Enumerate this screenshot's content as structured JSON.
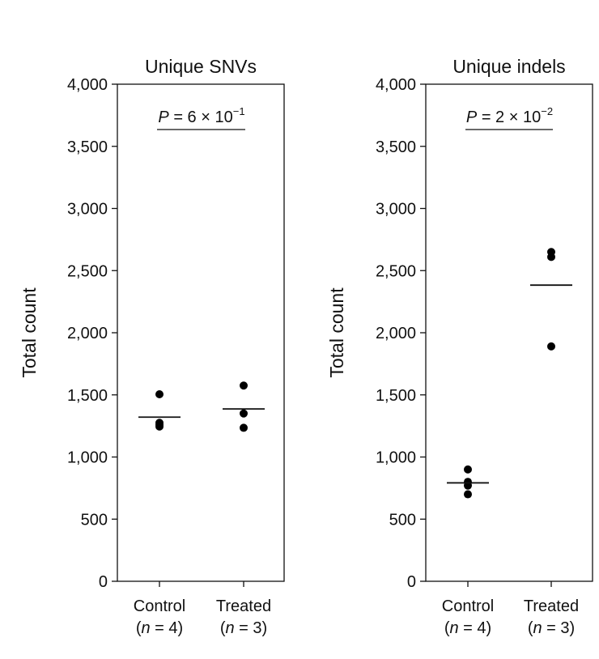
{
  "chart_data": [
    {
      "type": "scatter",
      "title": "Unique SNVs",
      "ylabel": "Total count",
      "ylim": [
        0,
        4000
      ],
      "yticks": [
        0,
        500,
        1000,
        1500,
        2000,
        2500,
        3000,
        3500,
        4000
      ],
      "ytick_labels": [
        "0",
        "500",
        "1,000",
        "1,500",
        "2,000",
        "2,500",
        "3,000",
        "3,500",
        "4,000"
      ],
      "categories": [
        {
          "name": "Control",
          "n_label": "(n = 4)",
          "n_prefix": "(",
          "n_var": "n",
          "n_suffix": " = 4)"
        },
        {
          "name": "Treated",
          "n_label": "(n = 3)",
          "n_prefix": "(",
          "n_var": "n",
          "n_suffix": " = 3)"
        }
      ],
      "series": [
        {
          "category": "Control",
          "points": [
            1505,
            1275,
            1260,
            1245
          ],
          "mean": 1321
        },
        {
          "category": "Treated",
          "points": [
            1575,
            1350,
            1235
          ],
          "mean": 1387
        }
      ],
      "pvalue": {
        "text": "P = 6 × 10−1",
        "var": "P",
        "mid": " = 6 × 10",
        "exp": "−1"
      },
      "grid": false,
      "point_color": "#000000"
    },
    {
      "type": "scatter",
      "title": "Unique indels",
      "ylabel": "Total count",
      "ylim": [
        0,
        4000
      ],
      "yticks": [
        0,
        500,
        1000,
        1500,
        2000,
        2500,
        3000,
        3500,
        4000
      ],
      "ytick_labels": [
        "0",
        "500",
        "1,000",
        "1,500",
        "2,000",
        "2,500",
        "3,000",
        "3,500",
        "4,000"
      ],
      "categories": [
        {
          "name": "Control",
          "n_label": "(n = 4)",
          "n_prefix": "(",
          "n_var": "n",
          "n_suffix": " = 4)"
        },
        {
          "name": "Treated",
          "n_label": "(n = 3)",
          "n_prefix": "(",
          "n_var": "n",
          "n_suffix": " = 3)"
        }
      ],
      "series": [
        {
          "category": "Control",
          "points": [
            900,
            800,
            770,
            700
          ],
          "mean": 792
        },
        {
          "category": "Treated",
          "points": [
            2650,
            2610,
            1890
          ],
          "mean": 2383
        }
      ],
      "pvalue": {
        "text": "P = 2 × 10−2",
        "var": "P",
        "mid": " = 2 × 10",
        "exp": "−2"
      },
      "grid": false,
      "point_color": "#000000"
    }
  ]
}
